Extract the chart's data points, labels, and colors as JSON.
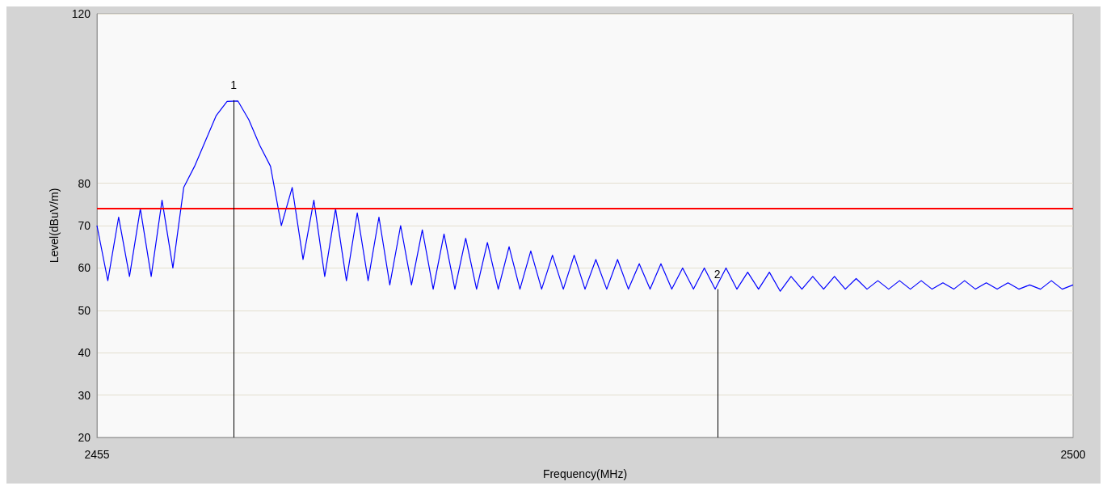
{
  "chart_data": {
    "type": "line",
    "xlabel": "Frequency(MHz)",
    "ylabel": "Level(dBuV/m)",
    "xlim": [
      2455,
      2500
    ],
    "xticks": [
      2455,
      2500
    ],
    "ylim": [
      20,
      120
    ],
    "yticks": [
      20,
      30,
      40,
      50,
      60,
      70,
      80,
      120
    ],
    "grid": "y",
    "marker": "none",
    "line_style": "solid",
    "x": [
      2455.0,
      2455.5,
      2456.0,
      2456.5,
      2457.0,
      2457.5,
      2458.0,
      2458.5,
      2459.0,
      2459.5,
      2460.0,
      2460.5,
      2461.0,
      2461.5,
      2462.0,
      2462.5,
      2463.0,
      2463.5,
      2464.0,
      2464.5,
      2465.0,
      2465.5,
      2466.0,
      2466.5,
      2467.0,
      2467.5,
      2468.0,
      2468.5,
      2469.0,
      2469.5,
      2470.0,
      2470.5,
      2471.0,
      2471.5,
      2472.0,
      2472.5,
      2473.0,
      2473.5,
      2474.0,
      2474.5,
      2475.0,
      2475.5,
      2476.0,
      2476.5,
      2477.0,
      2477.5,
      2478.0,
      2478.5,
      2479.0,
      2479.5,
      2480.0,
      2480.5,
      2481.0,
      2481.5,
      2482.0,
      2482.5,
      2483.0,
      2483.5,
      2484.0,
      2484.5,
      2485.0,
      2485.5,
      2486.0,
      2486.5,
      2487.0,
      2487.5,
      2488.0,
      2488.5,
      2489.0,
      2489.5,
      2490.0,
      2490.5,
      2491.0,
      2491.5,
      2492.0,
      2492.5,
      2493.0,
      2493.5,
      2494.0,
      2494.5,
      2495.0,
      2495.5,
      2496.0,
      2496.5,
      2497.0,
      2497.5,
      2498.0,
      2498.5,
      2499.0,
      2499.5,
      2500.0
    ],
    "series": [
      {
        "color": "#0000ff",
        "values": [
          70,
          57,
          72,
          58,
          74,
          58,
          76,
          60,
          79,
          84,
          90,
          96,
          99.3,
          99.4,
          95,
          89,
          84,
          70,
          79,
          62,
          76,
          58,
          74,
          57,
          73,
          57,
          72,
          56,
          70,
          56,
          69,
          55,
          68,
          55,
          67,
          55,
          66,
          55,
          65,
          55,
          64,
          55,
          63,
          55,
          63,
          55,
          62,
          55,
          62,
          55,
          61,
          55,
          61,
          55,
          60,
          55,
          60,
          55,
          60,
          55,
          59,
          55,
          59,
          54.5,
          58,
          55,
          58,
          55,
          58,
          55,
          57.5,
          55,
          57,
          55,
          57,
          55,
          57,
          55,
          56.5,
          55,
          57,
          55,
          56.5,
          55,
          56.5,
          55,
          56,
          55,
          57,
          55,
          56
        ]
      }
    ],
    "ref_lines": [
      {
        "axis": "y",
        "value": 74,
        "color": "#ff0000"
      }
    ],
    "annotations": [
      {
        "text": "1",
        "x": 2461.3,
        "y": 99.6
      },
      {
        "text": "2",
        "x": 2483.6,
        "y": 55
      }
    ]
  }
}
